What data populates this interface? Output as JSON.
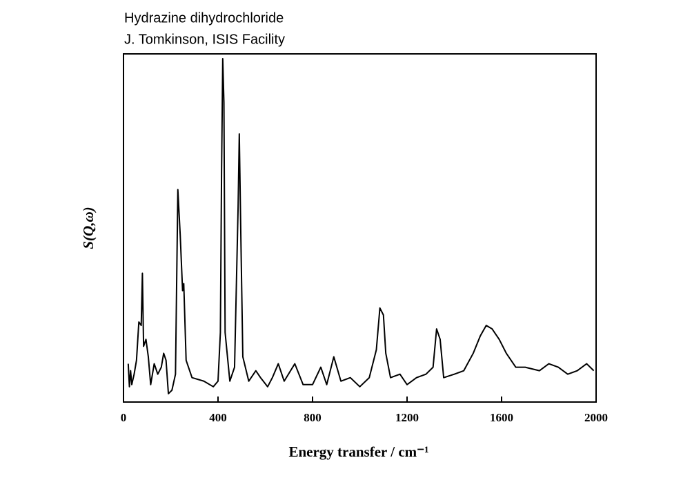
{
  "chart_data": {
    "type": "line",
    "title": "Hydrazine dihydrochloride",
    "subtitle": "J. Tomkinson, ISIS Facility",
    "xlabel": "Energy transfer / cm⁻¹",
    "ylabel": "S(Q,ω)",
    "xlim": [
      0,
      2000
    ],
    "xticks": [
      0,
      400,
      800,
      1200,
      1600,
      2000
    ],
    "ylim": [
      0,
      100
    ],
    "grid": false,
    "series": [
      {
        "name": "S(Q,ω)",
        "color": "#000000",
        "x": [
          20,
          25,
          30,
          35,
          45,
          55,
          65,
          75,
          80,
          85,
          95,
          105,
          115,
          130,
          145,
          160,
          170,
          180,
          190,
          205,
          220,
          230,
          240,
          250,
          255,
          265,
          290,
          340,
          380,
          400,
          410,
          415,
          420,
          425,
          430,
          450,
          470,
          485,
          490,
          497,
          505,
          530,
          560,
          580,
          610,
          630,
          655,
          680,
          725,
          760,
          800,
          835,
          860,
          890,
          920,
          960,
          1000,
          1040,
          1070,
          1085,
          1100,
          1110,
          1130,
          1170,
          1200,
          1240,
          1280,
          1310,
          1325,
          1340,
          1355,
          1400,
          1440,
          1480,
          1510,
          1535,
          1560,
          1590,
          1620,
          1660,
          1700,
          1760,
          1800,
          1840,
          1880,
          1920,
          1960,
          1990
        ],
        "values": [
          11,
          4.4,
          9,
          5,
          8,
          12,
          23,
          22,
          37,
          16,
          18,
          13,
          5,
          11,
          8,
          10,
          14,
          12,
          2.4,
          3.4,
          8,
          61,
          48,
          32,
          34,
          12,
          7,
          6,
          4.4,
          6,
          20,
          66,
          98.6,
          86,
          20,
          6,
          10,
          56,
          77,
          46,
          13,
          6,
          9,
          7,
          4.4,
          7,
          11,
          6,
          11,
          5,
          5,
          10,
          5,
          13,
          6,
          7,
          4.4,
          7,
          15,
          27,
          25,
          14,
          7,
          8,
          5,
          7,
          8,
          10,
          21,
          18,
          7,
          8,
          9,
          14,
          19,
          22,
          21,
          18,
          14,
          10,
          10,
          9,
          11,
          10,
          8,
          9,
          11,
          9
        ]
      }
    ]
  }
}
